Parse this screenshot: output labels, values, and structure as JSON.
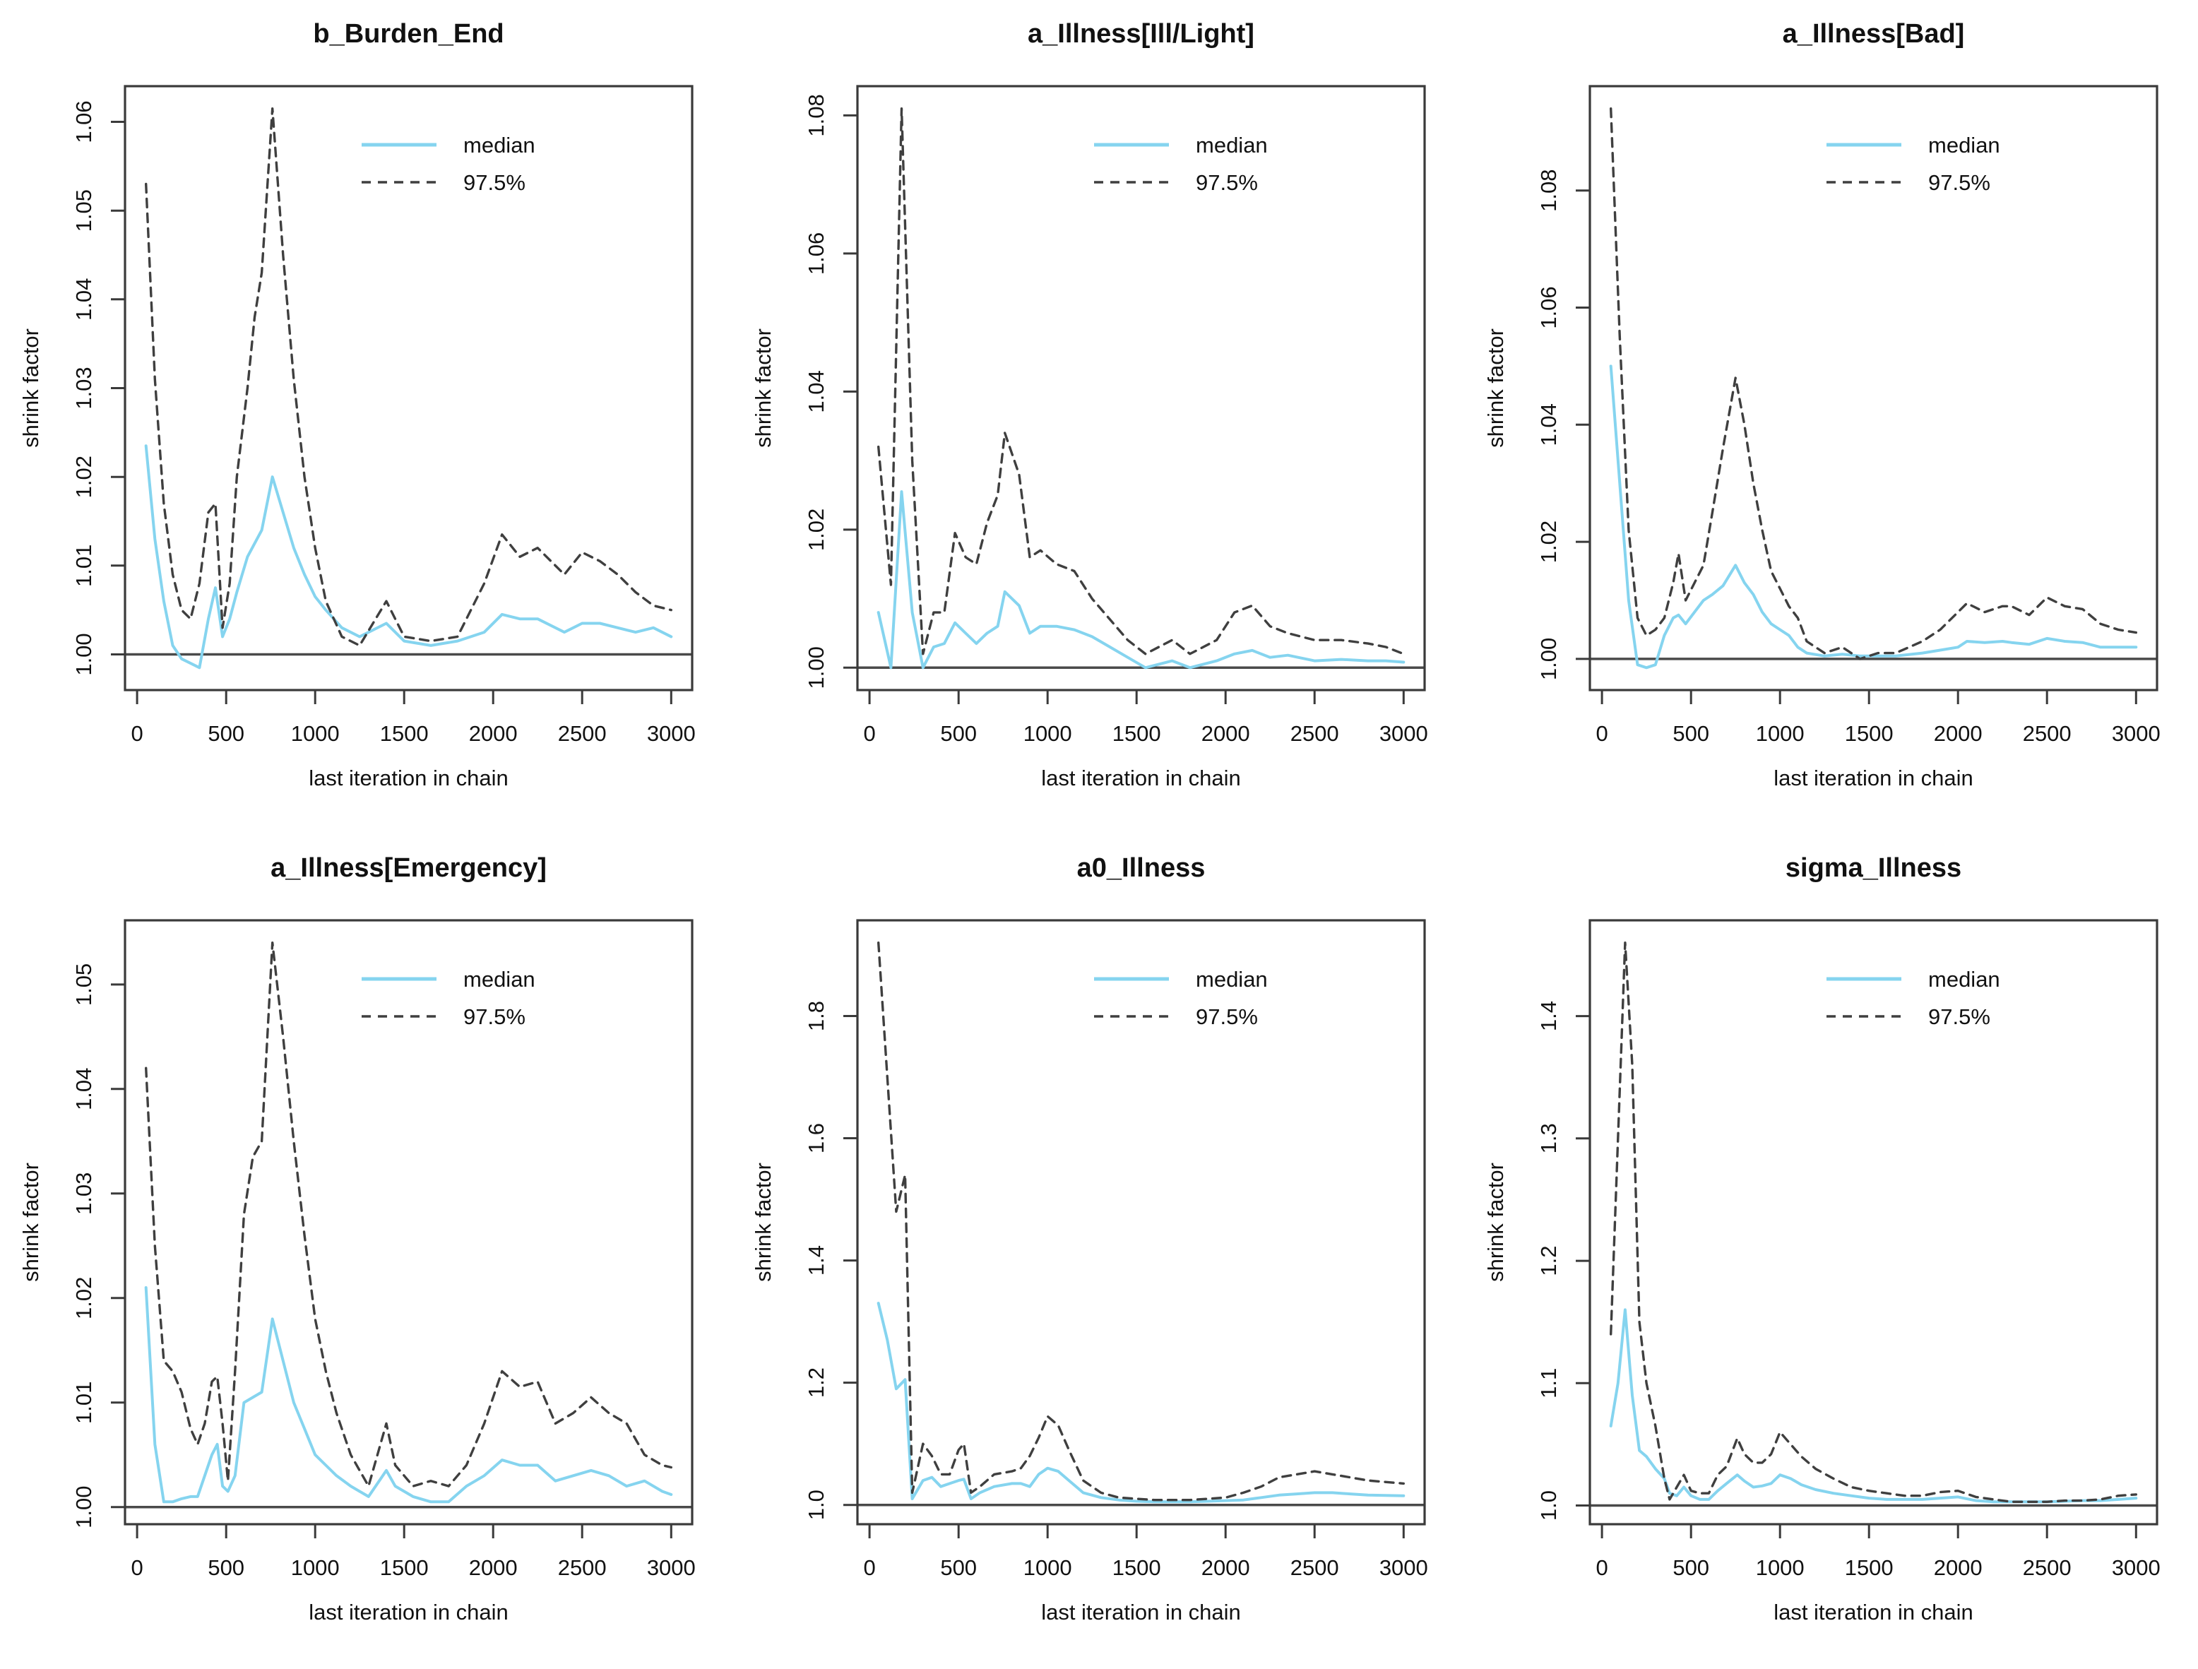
{
  "figure": {
    "background": "#ffffff",
    "xlabel": "last iteration in chain",
    "ylabel": "shrink factor",
    "legend": [
      "median",
      "97.5%"
    ],
    "colors": {
      "median_line": "#85d4ef",
      "q975_line": "#3f3f3f",
      "ref_line": "#4a4a4a",
      "box": "#3a3a3a",
      "text": "#111111"
    }
  },
  "chart_data": [
    {
      "type": "line",
      "title": "b_Burden_End",
      "xlabel": "last iteration in chain",
      "ylabel": "shrink factor",
      "xlim": [
        50,
        3000
      ],
      "ylim": [
        0.9985,
        1.0615
      ],
      "ref_line": 1.0,
      "grid": false,
      "legend": [
        "median",
        "97.5%"
      ],
      "legend_position": "top-right-inside",
      "x_ticks": [
        0,
        500,
        1000,
        1500,
        2000,
        2500,
        3000
      ],
      "x_tick_labels": [
        "0",
        "500",
        "1000",
        "1500",
        "2000",
        "2500",
        "3000"
      ],
      "y_ticks": [
        1.0,
        1.01,
        1.02,
        1.03,
        1.04,
        1.05,
        1.06
      ],
      "y_tick_labels": [
        "1.00",
        "1.01",
        "1.02",
        "1.03",
        "1.04",
        "1.05",
        "1.06"
      ],
      "x": [
        50,
        100,
        150,
        200,
        250,
        300,
        350,
        400,
        440,
        480,
        520,
        560,
        620,
        660,
        700,
        760,
        820,
        880,
        940,
        1000,
        1060,
        1150,
        1250,
        1400,
        1500,
        1650,
        1800,
        1950,
        2050,
        2150,
        2250,
        2400,
        2500,
        2600,
        2700,
        2800,
        2900,
        3000
      ],
      "series": [
        {
          "name": "median",
          "style": "solid",
          "values": [
            1.0235,
            1.013,
            1.006,
            1.001,
            0.9995,
            0.999,
            0.9985,
            1.004,
            1.0075,
            1.002,
            1.004,
            1.007,
            1.011,
            1.0125,
            1.014,
            1.02,
            1.016,
            1.012,
            1.009,
            1.0065,
            1.005,
            1.003,
            1.002,
            1.0035,
            1.0015,
            1.001,
            1.0015,
            1.0025,
            1.0045,
            1.004,
            1.004,
            1.0025,
            1.0035,
            1.0035,
            1.003,
            1.0025,
            1.003,
            1.002
          ]
        },
        {
          "name": "97.5%",
          "style": "dashed",
          "values": [
            1.053,
            1.031,
            1.017,
            1.009,
            1.005,
            1.004,
            1.008,
            1.016,
            1.017,
            1.003,
            1.008,
            1.02,
            1.03,
            1.038,
            1.043,
            1.0615,
            1.045,
            1.031,
            1.02,
            1.012,
            1.006,
            1.002,
            1.001,
            1.006,
            1.002,
            1.0015,
            1.002,
            1.008,
            1.0135,
            1.011,
            1.012,
            1.009,
            1.0115,
            1.0105,
            1.009,
            1.007,
            1.0055,
            1.005
          ]
        }
      ]
    },
    {
      "type": "line",
      "title": "a_Illness[Ill/Light]",
      "xlabel": "last iteration in chain",
      "ylabel": "shrink factor",
      "xlim": [
        50,
        3000
      ],
      "ylim": [
        1.0,
        1.081
      ],
      "ref_line": 1.0,
      "grid": false,
      "legend": [
        "median",
        "97.5%"
      ],
      "legend_position": "top-right-inside",
      "x_ticks": [
        0,
        500,
        1000,
        1500,
        2000,
        2500,
        3000
      ],
      "x_tick_labels": [
        "0",
        "500",
        "1000",
        "1500",
        "2000",
        "2500",
        "3000"
      ],
      "y_ticks": [
        1.0,
        1.02,
        1.04,
        1.06,
        1.08
      ],
      "y_tick_labels": [
        "1.00",
        "1.02",
        "1.04",
        "1.06",
        "1.08"
      ],
      "x": [
        50,
        120,
        180,
        240,
        300,
        360,
        420,
        480,
        540,
        600,
        660,
        720,
        760,
        840,
        900,
        960,
        1050,
        1150,
        1250,
        1350,
        1450,
        1550,
        1700,
        1800,
        1950,
        2050,
        2150,
        2250,
        2350,
        2500,
        2650,
        2800,
        2900,
        3000
      ],
      "series": [
        {
          "name": "median",
          "style": "solid",
          "values": [
            1.008,
            1.0,
            1.0255,
            1.008,
            1.0,
            1.003,
            1.0035,
            1.0065,
            1.005,
            1.0035,
            1.005,
            1.006,
            1.011,
            1.009,
            1.005,
            1.006,
            1.006,
            1.0055,
            1.0045,
            1.003,
            1.0015,
            1.0,
            1.001,
            1.0,
            1.001,
            1.002,
            1.0025,
            1.0015,
            1.0018,
            1.001,
            1.0012,
            1.001,
            1.001,
            1.0008
          ]
        },
        {
          "name": "97.5%",
          "style": "dashed",
          "values": [
            1.032,
            1.012,
            1.081,
            1.03,
            1.002,
            1.008,
            1.008,
            1.0195,
            1.016,
            1.015,
            1.021,
            1.025,
            1.034,
            1.028,
            1.016,
            1.017,
            1.015,
            1.014,
            1.01,
            1.007,
            1.004,
            1.002,
            1.004,
            1.002,
            1.004,
            1.008,
            1.009,
            1.006,
            1.005,
            1.004,
            1.004,
            1.0035,
            1.003,
            1.002
          ]
        }
      ]
    },
    {
      "type": "line",
      "title": "a_Illness[Bad]",
      "xlabel": "last iteration in chain",
      "ylabel": "shrink factor",
      "xlim": [
        50,
        3000
      ],
      "ylim": [
        0.9985,
        1.094
      ],
      "ref_line": 1.0,
      "grid": false,
      "legend": [
        "median",
        "97.5%"
      ],
      "legend_position": "top-right-inside",
      "x_ticks": [
        0,
        500,
        1000,
        1500,
        2000,
        2500,
        3000
      ],
      "x_tick_labels": [
        "0",
        "500",
        "1000",
        "1500",
        "2000",
        "2500",
        "3000"
      ],
      "y_ticks": [
        1.0,
        1.02,
        1.04,
        1.06,
        1.08
      ],
      "y_tick_labels": [
        "1.00",
        "1.02",
        "1.04",
        "1.06",
        "1.08"
      ],
      "x": [
        50,
        100,
        150,
        200,
        250,
        300,
        350,
        400,
        430,
        470,
        520,
        570,
        620,
        680,
        750,
        800,
        850,
        900,
        950,
        1000,
        1050,
        1100,
        1150,
        1250,
        1350,
        1450,
        1550,
        1650,
        1800,
        1900,
        2000,
        2050,
        2150,
        2250,
        2300,
        2400,
        2500,
        2600,
        2700,
        2800,
        2900,
        3000
      ],
      "series": [
        {
          "name": "median",
          "style": "solid",
          "values": [
            1.05,
            1.03,
            1.01,
            0.999,
            0.9985,
            0.999,
            1.004,
            1.007,
            1.0075,
            1.006,
            1.008,
            1.01,
            1.011,
            1.0125,
            1.016,
            1.013,
            1.011,
            1.008,
            1.006,
            1.005,
            1.004,
            1.002,
            1.001,
            1.0005,
            1.0008,
            1.0005,
            1.0005,
            1.0005,
            1.001,
            1.0015,
            1.002,
            1.003,
            1.0028,
            1.003,
            1.0028,
            1.0025,
            1.0035,
            1.003,
            1.0028,
            1.002,
            1.002,
            1.002
          ]
        },
        {
          "name": "97.5%",
          "style": "dashed",
          "values": [
            1.094,
            1.055,
            1.022,
            1.007,
            1.004,
            1.005,
            1.007,
            1.013,
            1.018,
            1.01,
            1.013,
            1.016,
            1.025,
            1.036,
            1.048,
            1.04,
            1.03,
            1.022,
            1.015,
            1.012,
            1.009,
            1.007,
            1.003,
            1.001,
            1.002,
            1.0,
            1.001,
            1.001,
            1.003,
            1.005,
            1.008,
            1.0095,
            1.008,
            1.009,
            1.009,
            1.0075,
            1.0105,
            1.009,
            1.0085,
            1.006,
            1.005,
            1.0045
          ]
        }
      ]
    },
    {
      "type": "line",
      "title": "a_Illness[Emergency]",
      "xlabel": "last iteration in chain",
      "ylabel": "shrink factor",
      "xlim": [
        50,
        3000
      ],
      "ylim": [
        1.0005,
        1.054
      ],
      "ref_line": 1.0,
      "grid": false,
      "legend": [
        "median",
        "97.5%"
      ],
      "legend_position": "top-right-inside",
      "x_ticks": [
        0,
        500,
        1000,
        1500,
        2000,
        2500,
        3000
      ],
      "x_tick_labels": [
        "0",
        "500",
        "1000",
        "1500",
        "2000",
        "2500",
        "3000"
      ],
      "y_ticks": [
        1.0,
        1.01,
        1.02,
        1.03,
        1.04,
        1.05
      ],
      "y_tick_labels": [
        "1.00",
        "1.01",
        "1.02",
        "1.03",
        "1.04",
        "1.05"
      ],
      "x": [
        50,
        100,
        150,
        200,
        250,
        300,
        340,
        380,
        420,
        450,
        480,
        510,
        550,
        600,
        650,
        700,
        760,
        820,
        880,
        940,
        1000,
        1060,
        1120,
        1200,
        1300,
        1400,
        1450,
        1550,
        1650,
        1750,
        1850,
        1950,
        2050,
        2150,
        2250,
        2350,
        2450,
        2550,
        2650,
        2750,
        2850,
        2950,
        3000
      ],
      "series": [
        {
          "name": "median",
          "style": "solid",
          "values": [
            1.021,
            1.006,
            1.0005,
            1.0005,
            1.0008,
            1.001,
            1.001,
            1.003,
            1.005,
            1.006,
            1.002,
            1.0015,
            1.003,
            1.01,
            1.0105,
            1.011,
            1.018,
            1.014,
            1.01,
            1.0075,
            1.005,
            1.004,
            1.003,
            1.002,
            1.001,
            1.0035,
            1.002,
            1.001,
            1.0005,
            1.0005,
            1.002,
            1.003,
            1.0045,
            1.004,
            1.004,
            1.0025,
            1.003,
            1.0035,
            1.003,
            1.002,
            1.0025,
            1.0015,
            1.0012
          ]
        },
        {
          "name": "97.5%",
          "style": "dashed",
          "values": [
            1.042,
            1.025,
            1.014,
            1.013,
            1.011,
            1.0075,
            1.006,
            1.008,
            1.012,
            1.0125,
            1.008,
            1.0025,
            1.013,
            1.028,
            1.0335,
            1.035,
            1.054,
            1.045,
            1.035,
            1.026,
            1.018,
            1.013,
            1.009,
            1.005,
            1.002,
            1.008,
            1.004,
            1.002,
            1.0025,
            1.002,
            1.004,
            1.008,
            1.013,
            1.0115,
            1.012,
            1.008,
            1.009,
            1.0105,
            1.009,
            1.008,
            1.005,
            1.004,
            1.0038
          ]
        }
      ]
    },
    {
      "type": "line",
      "title": "a0_Illness",
      "xlabel": "last iteration in chain",
      "ylabel": "shrink factor",
      "xlim": [
        50,
        3000
      ],
      "ylim": [
        1.005,
        1.92
      ],
      "ref_line": 1.0,
      "grid": false,
      "legend": [
        "median",
        "97.5%"
      ],
      "legend_position": "top-right-inside",
      "x_ticks": [
        0,
        500,
        1000,
        1500,
        2000,
        2500,
        3000
      ],
      "x_tick_labels": [
        "0",
        "500",
        "1000",
        "1500",
        "2000",
        "2500",
        "3000"
      ],
      "y_ticks": [
        1.0,
        1.2,
        1.4,
        1.6,
        1.8
      ],
      "y_tick_labels": [
        "1.0",
        "1.2",
        "1.4",
        "1.6",
        "1.8"
      ],
      "x": [
        50,
        100,
        150,
        200,
        240,
        300,
        350,
        400,
        450,
        500,
        530,
        570,
        620,
        700,
        800,
        850,
        900,
        950,
        1000,
        1060,
        1120,
        1200,
        1300,
        1400,
        1500,
        1600,
        1700,
        1800,
        1900,
        2000,
        2100,
        2200,
        2300,
        2400,
        2500,
        2600,
        2700,
        2800,
        3000
      ],
      "series": [
        {
          "name": "median",
          "style": "solid",
          "values": [
            1.33,
            1.27,
            1.19,
            1.205,
            1.01,
            1.04,
            1.045,
            1.03,
            1.035,
            1.04,
            1.042,
            1.01,
            1.02,
            1.03,
            1.035,
            1.035,
            1.03,
            1.05,
            1.06,
            1.055,
            1.04,
            1.02,
            1.012,
            1.008,
            1.006,
            1.005,
            1.005,
            1.005,
            1.006,
            1.007,
            1.008,
            1.012,
            1.016,
            1.018,
            1.02,
            1.02,
            1.018,
            1.016,
            1.015
          ]
        },
        {
          "name": "97.5%",
          "style": "dashed",
          "values": [
            1.92,
            1.7,
            1.48,
            1.54,
            1.02,
            1.1,
            1.08,
            1.05,
            1.05,
            1.09,
            1.1,
            1.02,
            1.03,
            1.05,
            1.055,
            1.06,
            1.08,
            1.11,
            1.145,
            1.13,
            1.09,
            1.04,
            1.02,
            1.012,
            1.01,
            1.008,
            1.008,
            1.008,
            1.01,
            1.012,
            1.02,
            1.03,
            1.045,
            1.05,
            1.055,
            1.05,
            1.045,
            1.04,
            1.035
          ]
        }
      ]
    },
    {
      "type": "line",
      "title": "sigma_Illness",
      "xlabel": "last iteration in chain",
      "ylabel": "shrink factor",
      "xlim": [
        50,
        3000
      ],
      "ylim": [
        1.003,
        1.46
      ],
      "ref_line": 1.0,
      "grid": false,
      "legend": [
        "median",
        "97.5%"
      ],
      "legend_position": "top-right-inside",
      "x_ticks": [
        0,
        500,
        1000,
        1500,
        2000,
        2500,
        3000
      ],
      "x_tick_labels": [
        "0",
        "500",
        "1000",
        "1500",
        "2000",
        "2500",
        "3000"
      ],
      "y_ticks": [
        1.0,
        1.1,
        1.2,
        1.3,
        1.4
      ],
      "y_tick_labels": [
        "1.0",
        "1.1",
        "1.2",
        "1.3",
        "1.4"
      ],
      "x": [
        50,
        90,
        130,
        170,
        210,
        250,
        300,
        350,
        380,
        420,
        460,
        500,
        550,
        600,
        650,
        700,
        760,
        800,
        850,
        900,
        950,
        1000,
        1060,
        1120,
        1200,
        1300,
        1400,
        1500,
        1600,
        1700,
        1800,
        1900,
        2000,
        2100,
        2200,
        2300,
        2400,
        2500,
        2600,
        2700,
        2800,
        2900,
        3000
      ],
      "series": [
        {
          "name": "median",
          "style": "solid",
          "values": [
            1.065,
            1.1,
            1.16,
            1.09,
            1.045,
            1.04,
            1.03,
            1.022,
            1.01,
            1.008,
            1.015,
            1.008,
            1.005,
            1.005,
            1.012,
            1.018,
            1.025,
            1.02,
            1.015,
            1.016,
            1.018,
            1.025,
            1.022,
            1.017,
            1.013,
            1.01,
            1.008,
            1.006,
            1.005,
            1.005,
            1.005,
            1.006,
            1.007,
            1.004,
            1.003,
            1.003,
            1.003,
            1.003,
            1.0035,
            1.004,
            1.004,
            1.005,
            1.006
          ]
        },
        {
          "name": "97.5%",
          "style": "dashed",
          "values": [
            1.14,
            1.3,
            1.46,
            1.36,
            1.15,
            1.1,
            1.065,
            1.022,
            1.005,
            1.015,
            1.025,
            1.012,
            1.01,
            1.01,
            1.025,
            1.032,
            1.055,
            1.042,
            1.035,
            1.035,
            1.042,
            1.06,
            1.05,
            1.04,
            1.03,
            1.022,
            1.015,
            1.012,
            1.01,
            1.008,
            1.008,
            1.011,
            1.012,
            1.007,
            1.005,
            1.003,
            1.003,
            1.003,
            1.004,
            1.004,
            1.005,
            1.008,
            1.009
          ]
        }
      ]
    }
  ]
}
